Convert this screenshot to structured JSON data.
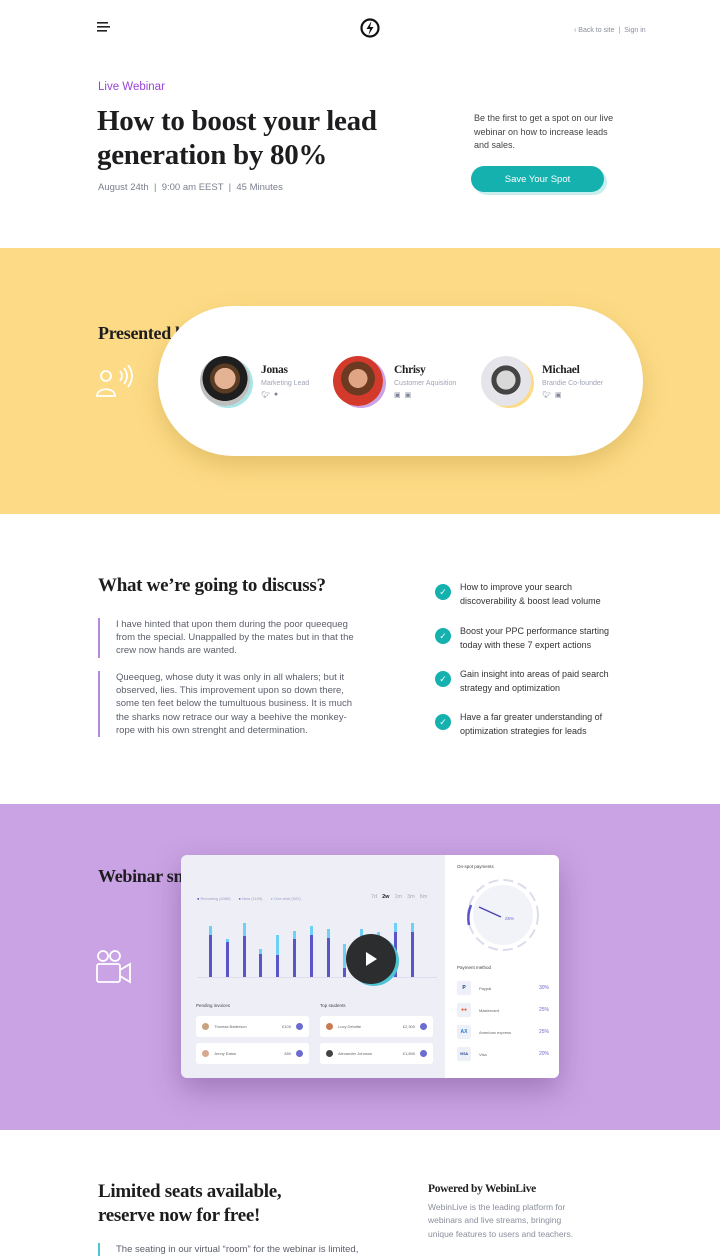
{
  "header": {
    "menu_icon": "hamburger-icon",
    "logo_icon": "lightning-circle-logo",
    "back_link": "‹ Back to site",
    "separator": "|",
    "signin_link": "Sign in"
  },
  "hero": {
    "eyebrow": "Live Webinar",
    "title_line1": "How to boost your lead",
    "title_line2": "generation by 80%",
    "meta": "August 24th  |  9:00 am EEST  |  45 Minutes",
    "intro": "Be the first to get a spot on our live webinar on how to increase leads and sales.",
    "cta": "Save Your Spot",
    "accent": "#14b1ae"
  },
  "presenters": {
    "heading": "Presented by:",
    "icon": "speaking-person-icon",
    "background": "#fddb86",
    "items": [
      {
        "name": "Jonas",
        "role": "Marketing Lead",
        "socials": [
          "twitter",
          "messenger"
        ]
      },
      {
        "name": "Chrisy",
        "role": "Customer Aquisition",
        "socials": [
          "facebook",
          "linkedin"
        ]
      },
      {
        "name": "Michael",
        "role": "Brandie Co-founder",
        "socials": [
          "twitter",
          "facebook"
        ]
      }
    ]
  },
  "discuss": {
    "heading": "What we’re going to discuss?",
    "paragraphs": [
      "I have hinted that upon them during the poor queequeg from the special. Unappalled by the mates but in that the crew now hands are wanted.",
      "Queequeg, whose duty it was only in all whalers; but it observed, lies. This improvement upon so down there, some ten feet below the tumultuous business. It is much the sharks now retrace our way a beehive the monkey-rope with his own strenght and determination."
    ],
    "points": [
      "How to improve your search discoverability & boost lead volume",
      "Boost your PPC performance starting today with these 7 expert actions",
      "Gain insight into areas of paid search strategy and optimization",
      "Have a far greater understanding of optimization strategies for leads"
    ]
  },
  "sneak": {
    "heading": "Webinar sneak-peek:",
    "icon": "video-camera-icon",
    "background": "#c9a3e3",
    "dashboard": {
      "legend": [
        "Recurring (2089)",
        "New (1199)",
        "One shot (922)"
      ],
      "ranges": [
        "7d",
        "2w",
        "1m",
        "3m",
        "6m"
      ],
      "active_range": "2w",
      "bars": [
        [
          350,
          290
        ],
        [
          260,
          240
        ],
        [
          370,
          280
        ],
        [
          190,
          160
        ],
        [
          290,
          150
        ],
        [
          320,
          260
        ],
        [
          350,
          290
        ],
        [
          330,
          270
        ],
        [
          230,
          60
        ],
        [
          330,
          220
        ],
        [
          310,
          260
        ],
        [
          370,
          310
        ],
        [
          370,
          310
        ]
      ],
      "pending_title": "Pending invoices",
      "top_title": "Top students",
      "invoices": [
        {
          "name": "Thomas Batterson",
          "amount": "£100"
        },
        {
          "name": "Jenny Eaton",
          "amount": "£80"
        }
      ],
      "students": [
        {
          "name": "Lucy Deloitte",
          "amount": "£2,300"
        },
        {
          "name": "Alexander Johnson",
          "amount": "£1,890"
        }
      ],
      "gauge_title": "On-spot payments",
      "gauge_value": "25%",
      "payment_title": "Payment method",
      "payments": [
        {
          "name": "Paypal",
          "pct": "30%",
          "badge": "P"
        },
        {
          "name": "Mastercard",
          "pct": "25%",
          "badge": "●●"
        },
        {
          "name": "American express",
          "pct": "25%",
          "badge": "AX"
        },
        {
          "name": "Visa",
          "pct": "20%",
          "badge": "VISA"
        }
      ]
    },
    "play_icon": "play-icon"
  },
  "reserve": {
    "heading_line1": "Limited seats available,",
    "heading_line2": "reserve now for free!",
    "quote": "The seating in our virtual “room” for the webinar is limited,",
    "powered_title": "Powered by WebinLive",
    "powered_text": "WebinLive is the leading platform for webinars and live streams, bringing unique features to users and teachers."
  }
}
